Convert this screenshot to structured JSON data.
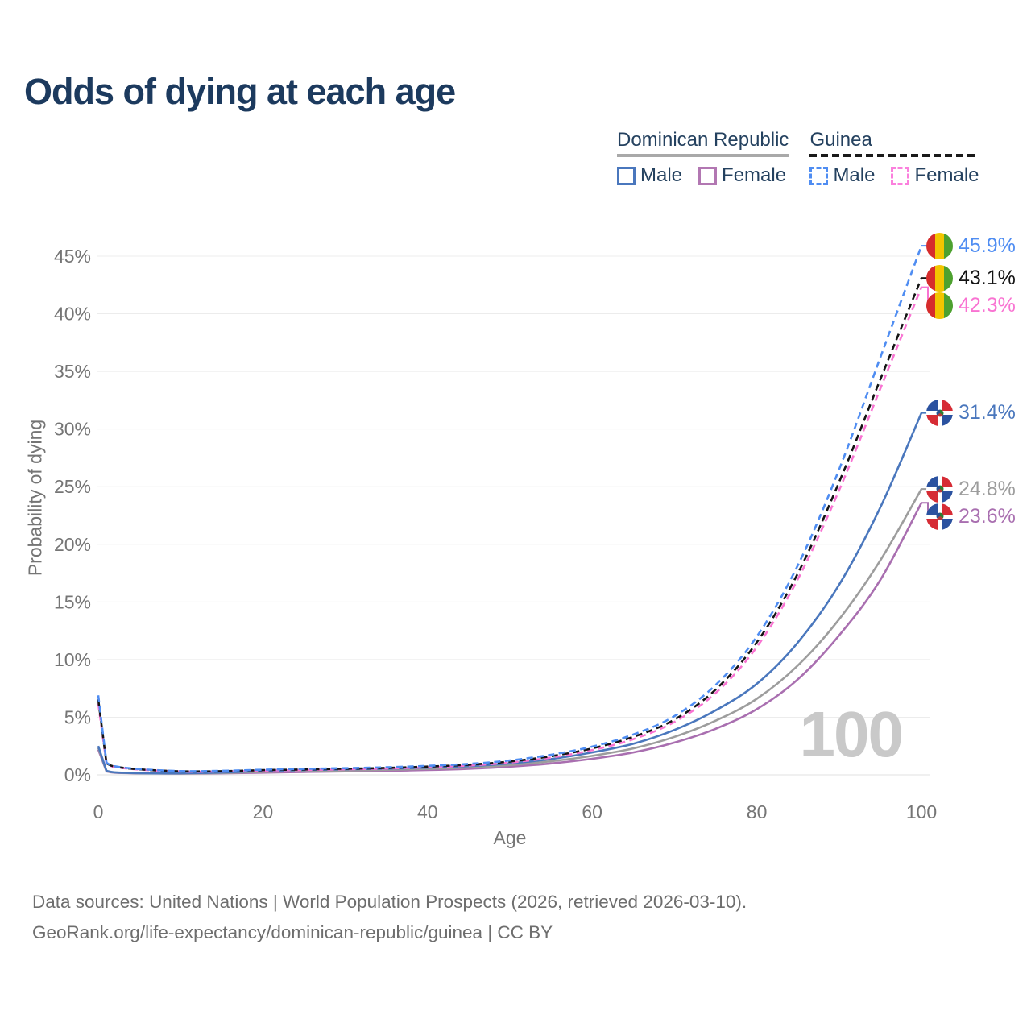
{
  "title": "Odds of dying at each age",
  "watermark": "100",
  "colors": {
    "title_text": "#1c3a5e",
    "legend_text": "#24415f",
    "axis_text": "#757575",
    "grid": "#ececec",
    "grid_zero": "#e2e2e2",
    "watermark": "#c9c9c9",
    "footer_text": "#6e6e6e"
  },
  "legend": {
    "groups": [
      {
        "name": "Dominican Republic",
        "slug": "dominican-republic",
        "line_style": "solid",
        "header_line_color": "#a9a9a9",
        "items": [
          {
            "label": "Male",
            "color": "#4a77bd"
          },
          {
            "label": "Female",
            "color": "#b277b2"
          }
        ]
      },
      {
        "name": "Guinea",
        "slug": "guinea",
        "line_style": "dashed",
        "header_line_color": "#1a1a1a",
        "items": [
          {
            "label": "Male",
            "color": "#4f8df2"
          },
          {
            "label": "Female",
            "color": "#fb80dd"
          }
        ]
      }
    ]
  },
  "flags": {
    "guinea": {
      "red": "#d62c2c",
      "yellow": "#f2c500",
      "green": "#4da12f"
    },
    "dominican_republic": {
      "blue": "#2b52a0",
      "red": "#d62c35",
      "white": "#ffffff",
      "emblem_green": "#2e7d32",
      "emblem_red": "#b53b3b",
      "emblem_blue": "#27518f"
    }
  },
  "footer": {
    "line1": "Data sources: United Nations | World Population Prospects (2026, retrieved 2026-03-10).",
    "line2": "GeoRank.org/life-expectancy/dominican-republic/guinea | CC BY"
  },
  "chart_data": {
    "type": "line",
    "title": "Odds of dying at each age",
    "xlabel": "Age",
    "ylabel": "Probability of dying",
    "x_ticks": [
      0,
      20,
      40,
      60,
      80,
      100
    ],
    "y_ticks": [
      0,
      5,
      10,
      15,
      20,
      25,
      30,
      35,
      40,
      45
    ],
    "y_tick_suffix": "%",
    "xlim": [
      0,
      100
    ],
    "ylim": [
      0,
      47
    ],
    "grid": "horizontal-only",
    "legend_position": "top-right",
    "x": [
      0,
      1,
      2,
      5,
      10,
      15,
      20,
      25,
      30,
      35,
      40,
      45,
      50,
      55,
      60,
      65,
      70,
      75,
      80,
      85,
      90,
      95,
      100
    ],
    "series": [
      {
        "name": "Guinea Male",
        "country": "Guinea",
        "sex": "Male",
        "flag": "guinea",
        "color": "#4f8df2",
        "dashed": true,
        "end_value": 45.9,
        "end_label": "45.9%",
        "values": [
          6.9,
          1.05,
          0.75,
          0.5,
          0.33,
          0.35,
          0.45,
          0.52,
          0.58,
          0.66,
          0.78,
          0.95,
          1.25,
          1.75,
          2.45,
          3.5,
          5.1,
          7.8,
          12.0,
          18.2,
          26.5,
          36.2,
          45.9
        ]
      },
      {
        "name": "Guinea Both sexes",
        "country": "Guinea",
        "sex": "Both",
        "flag": "guinea",
        "color": "#141414",
        "dashed": true,
        "end_value": 43.1,
        "end_label": "43.1%",
        "values": [
          6.55,
          1.0,
          0.72,
          0.48,
          0.31,
          0.32,
          0.41,
          0.47,
          0.53,
          0.6,
          0.72,
          0.88,
          1.16,
          1.62,
          2.3,
          3.3,
          4.8,
          7.4,
          11.5,
          17.5,
          25.4,
          34.3,
          43.1
        ]
      },
      {
        "name": "Guinea Female",
        "country": "Guinea",
        "sex": "Female",
        "flag": "guinea",
        "color": "#f973d2",
        "dashed": true,
        "end_value": 42.3,
        "end_label": "42.3%",
        "values": [
          6.2,
          0.95,
          0.69,
          0.46,
          0.29,
          0.29,
          0.37,
          0.42,
          0.48,
          0.55,
          0.66,
          0.81,
          1.07,
          1.5,
          2.15,
          3.1,
          4.6,
          7.1,
          11.1,
          17.0,
          24.7,
          33.5,
          42.3
        ]
      },
      {
        "name": "Dominican Republic Male",
        "country": "Dominican Republic",
        "sex": "Male",
        "flag": "dominican_republic",
        "color": "#4a77bd",
        "dashed": false,
        "end_value": 31.4,
        "end_label": "31.4%",
        "values": [
          2.5,
          0.35,
          0.22,
          0.15,
          0.13,
          0.2,
          0.33,
          0.42,
          0.48,
          0.54,
          0.62,
          0.76,
          1.0,
          1.38,
          1.95,
          2.7,
          3.9,
          5.6,
          7.9,
          11.5,
          16.5,
          23.2,
          31.4
        ]
      },
      {
        "name": "Dominican Republic Both sexes",
        "country": "Dominican Republic",
        "sex": "Both",
        "flag": "dominican_republic",
        "color": "#9d9d9d",
        "dashed": false,
        "end_value": 24.8,
        "end_label": "24.8%",
        "values": [
          2.35,
          0.32,
          0.2,
          0.14,
          0.12,
          0.16,
          0.26,
          0.33,
          0.38,
          0.44,
          0.52,
          0.64,
          0.85,
          1.18,
          1.65,
          2.3,
          3.3,
          4.7,
          6.6,
          9.5,
          13.5,
          18.6,
          24.8
        ]
      },
      {
        "name": "Dominican Republic Female",
        "country": "Dominican Republic",
        "sex": "Female",
        "flag": "dominican_republic",
        "color": "#a96fb0",
        "dashed": false,
        "end_value": 23.6,
        "end_label": "23.6%",
        "values": [
          2.2,
          0.3,
          0.19,
          0.13,
          0.11,
          0.13,
          0.19,
          0.25,
          0.3,
          0.35,
          0.42,
          0.53,
          0.71,
          0.99,
          1.4,
          1.95,
          2.8,
          4.0,
          5.7,
          8.3,
          12.1,
          16.9,
          23.6
        ]
      }
    ]
  }
}
